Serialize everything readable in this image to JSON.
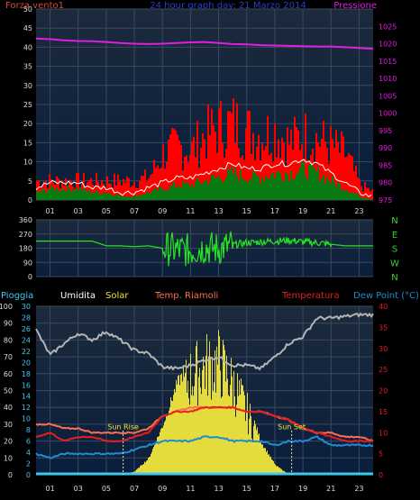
{
  "colors": {
    "background": "#000000",
    "plot_bg_top": "#1c2a3c",
    "plot_bg_bottom": "#0a1e3c",
    "grid": "#3a4a5e",
    "wind_axis": "#d24a3c",
    "wind_gust": "#ff0000",
    "wind_avg": "#0a7a14",
    "wind_line": "#ffffff",
    "pressure": "#e01ee0",
    "direction": "#22e622",
    "direction_label": "#32d232",
    "humidity": "#b4b4b4",
    "solar": "#f0e63c",
    "app_temp": "#ff6e50",
    "temperature": "#e61e1e",
    "dewpoint": "#1e8cd2",
    "rain": "#3cc8f0",
    "title": "#2a3cd2",
    "tick_text": "#dcdcdc"
  },
  "chart_data": [
    {
      "type": "line",
      "panel": "wind-pressure",
      "title": "24 hour graph day: 21 Marzo 2014",
      "left_label": "Forza vento1",
      "right_label": "Pressione",
      "x_ticks": [
        "01",
        "03",
        "05",
        "07",
        "09",
        "11",
        "13",
        "15",
        "17",
        "19",
        "21",
        "23"
      ],
      "left_ticks": [
        0,
        5,
        10,
        15,
        20,
        25,
        30,
        35,
        40,
        45,
        50
      ],
      "right_ticks": [
        975,
        980,
        985,
        990,
        995,
        1000,
        1005,
        1010,
        1015,
        1020,
        1025
      ],
      "ylim_left": [
        0,
        50
      ],
      "ylim_right": [
        975,
        1030
      ],
      "x_range": [
        0,
        24
      ],
      "series": [
        {
          "role": "pressure",
          "x": [
            0,
            1,
            2,
            3,
            4,
            5,
            6,
            7,
            8,
            9,
            10,
            11,
            12,
            13,
            14,
            15,
            16,
            17,
            18,
            19,
            20,
            21,
            22,
            23,
            24
          ],
          "values": [
            1021.5,
            1021.3,
            1021.0,
            1020.8,
            1020.7,
            1020.5,
            1020.2,
            1020.0,
            1019.9,
            1020.0,
            1020.2,
            1020.4,
            1020.5,
            1020.2,
            1019.9,
            1019.8,
            1019.6,
            1019.5,
            1019.4,
            1019.3,
            1019.2,
            1019.2,
            1019.0,
            1018.8,
            1018.5
          ]
        },
        {
          "role": "gust",
          "x": [
            0,
            1,
            2,
            3,
            4,
            5,
            6,
            7,
            8,
            9,
            10,
            11,
            12,
            13,
            14,
            15,
            16,
            17,
            18,
            19,
            20,
            21,
            22,
            23,
            24
          ],
          "values": [
            5,
            5,
            5,
            5,
            5,
            5,
            5,
            5,
            6,
            12,
            14,
            13,
            17,
            19,
            20,
            18,
            17,
            18,
            15,
            17,
            16,
            14,
            12,
            4,
            2
          ]
        },
        {
          "role": "average",
          "x": [
            0,
            1,
            2,
            3,
            4,
            5,
            6,
            7,
            8,
            9,
            10,
            11,
            12,
            13,
            14,
            15,
            16,
            17,
            18,
            19,
            20,
            21,
            22,
            23,
            24
          ],
          "values": [
            2,
            3,
            3,
            3,
            2,
            2,
            1,
            1,
            2,
            3,
            4,
            4,
            5,
            6,
            7,
            6,
            6,
            7,
            7,
            8,
            7,
            5,
            3,
            1,
            0
          ]
        }
      ]
    },
    {
      "type": "scatter",
      "panel": "wind-direction",
      "y_ticks": [
        0,
        90,
        180,
        270,
        360
      ],
      "ylim": [
        0,
        360
      ],
      "x_range": [
        0,
        24
      ],
      "right_labels": [
        "N",
        "W",
        "S",
        "E",
        "N"
      ],
      "x": [
        0,
        1,
        2,
        3,
        4,
        5,
        6,
        7,
        8,
        9,
        10,
        11,
        12,
        13,
        14,
        15,
        16,
        17,
        18,
        19,
        20,
        21,
        22,
        23,
        24
      ],
      "values": [
        225,
        225,
        225,
        225,
        225,
        195,
        195,
        190,
        195,
        180,
        170,
        165,
        185,
        175,
        200,
        215,
        220,
        225,
        230,
        220,
        215,
        205,
        195,
        195,
        195
      ]
    },
    {
      "type": "line",
      "panel": "meteo",
      "legend": [
        "Pioggia",
        "Umidita",
        "Solar",
        "Temp. Riamoli",
        "Temperatura",
        "Dew Point (°C)"
      ],
      "left_ticks_humidity": [
        0,
        10,
        20,
        30,
        40,
        50,
        60,
        70,
        80,
        90,
        100
      ],
      "left_ticks_rain": [
        0,
        2,
        4,
        6,
        8,
        10,
        12,
        14,
        16,
        18,
        20,
        22,
        24,
        26,
        28,
        30
      ],
      "right_ticks": [
        0,
        5,
        10,
        15,
        20,
        25,
        30,
        35,
        40
      ],
      "ylim_humidity": [
        0,
        100
      ],
      "ylim_temp": [
        0,
        40
      ],
      "x_ticks": [
        "01",
        "03",
        "05",
        "07",
        "09",
        "11",
        "13",
        "15",
        "17",
        "19",
        "21",
        "23"
      ],
      "x_range": [
        0,
        24
      ],
      "annotations": [
        {
          "text": "Sun Rise",
          "x": 6.2
        },
        {
          "text": "Sun Set",
          "x": 18.2
        }
      ],
      "series": [
        {
          "role": "humidity",
          "x": [
            0,
            1,
            2,
            3,
            4,
            5,
            6,
            7,
            8,
            9,
            10,
            11,
            12,
            13,
            14,
            15,
            16,
            17,
            18,
            19,
            20,
            21,
            22,
            23,
            24
          ],
          "values": [
            86,
            71,
            78,
            84,
            80,
            85,
            80,
            74,
            72,
            64,
            63,
            65,
            68,
            70,
            65,
            65,
            63,
            70,
            78,
            82,
            93,
            93,
            94,
            95,
            95
          ]
        },
        {
          "role": "solar",
          "x": [
            6,
            7,
            8,
            9,
            10,
            11,
            12,
            13,
            14,
            15,
            16,
            17,
            18
          ],
          "values": [
            0,
            2,
            10,
            30,
            55,
            70,
            78,
            80,
            65,
            45,
            20,
            6,
            0
          ]
        },
        {
          "role": "app_temp",
          "x": [
            0,
            1,
            2,
            3,
            4,
            5,
            6,
            7,
            8,
            9,
            10,
            11,
            12,
            13,
            14,
            15,
            16,
            17,
            18,
            19,
            20,
            21,
            22,
            23,
            24
          ],
          "values": [
            12,
            12,
            11,
            11,
            10,
            10,
            10,
            10,
            11,
            14,
            15,
            16,
            16,
            16,
            16,
            15,
            15,
            14,
            13,
            11,
            10,
            10,
            9,
            9,
            8
          ]
        },
        {
          "role": "temperature",
          "x": [
            0,
            1,
            2,
            3,
            4,
            5,
            6,
            7,
            8,
            9,
            10,
            11,
            12,
            13,
            14,
            15,
            16,
            17,
            18,
            19,
            20,
            21,
            22,
            23,
            24
          ],
          "values": [
            9,
            10,
            8,
            9,
            9,
            8,
            8,
            9,
            10,
            14,
            15,
            15,
            16,
            16,
            16,
            15,
            15,
            14,
            13,
            11,
            10,
            9,
            8,
            8,
            8
          ]
        },
        {
          "role": "dewpoint",
          "x": [
            0,
            1,
            2,
            3,
            4,
            5,
            6,
            7,
            8,
            9,
            10,
            11,
            12,
            13,
            14,
            15,
            16,
            17,
            18,
            19,
            20,
            21,
            22,
            23,
            24
          ],
          "values": [
            5,
            4,
            5,
            5,
            5,
            5,
            5,
            6,
            7,
            8,
            8,
            8,
            9,
            9,
            8,
            8,
            8,
            7,
            8,
            8,
            9,
            7,
            7,
            7,
            7
          ]
        },
        {
          "role": "rain",
          "x": [
            0,
            24
          ],
          "values": [
            0,
            0
          ]
        }
      ]
    }
  ]
}
